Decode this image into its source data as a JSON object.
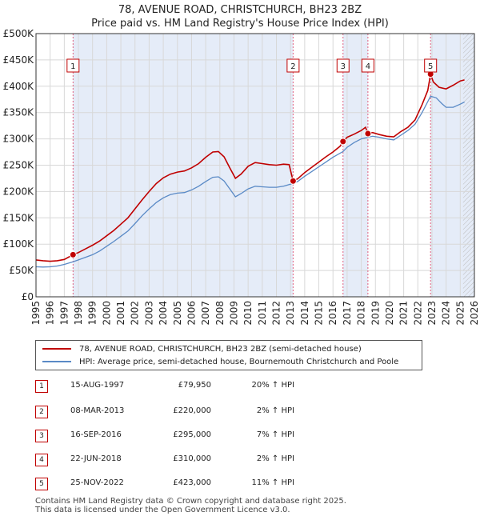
{
  "title_line1": "78, AVENUE ROAD, CHRISTCHURCH, BH23 2BZ",
  "title_line2": "Price paid vs. HM Land Registry's House Price Index (HPI)",
  "colors": {
    "price": "#c00000",
    "hpi": "#5a8ac6",
    "shade": "#dce6f5",
    "grid": "#d8d8d8"
  },
  "chart_data": {
    "type": "line",
    "title": "78, AVENUE ROAD, CHRISTCHURCH, BH23 2BZ — Price paid vs. HM Land Registry's House Price Index (HPI)",
    "xlim": [
      1995,
      2026
    ],
    "ylim": [
      0,
      500000
    ],
    "y_ticks": [
      0,
      50000,
      100000,
      150000,
      200000,
      250000,
      300000,
      350000,
      400000,
      450000,
      500000
    ],
    "y_tick_labels": [
      "£0",
      "£50K",
      "£100K",
      "£150K",
      "£200K",
      "£250K",
      "£300K",
      "£350K",
      "£400K",
      "£450K",
      "£500K"
    ],
    "x_ticks": [
      1995,
      1996,
      1997,
      1998,
      1999,
      2000,
      2001,
      2002,
      2003,
      2004,
      2005,
      2006,
      2007,
      2008,
      2009,
      2010,
      2011,
      2012,
      2013,
      2014,
      2015,
      2016,
      2017,
      2018,
      2019,
      2020,
      2021,
      2022,
      2023,
      2024,
      2025,
      2026
    ],
    "x_tick_labels": [
      "1995",
      "1996",
      "1997",
      "1998",
      "1999",
      "2000",
      "2001",
      "2002",
      "2003",
      "2004",
      "2005",
      "2006",
      "2007",
      "2008",
      "2009",
      "2010",
      "2011",
      "2012",
      "2013",
      "2014",
      "2015",
      "2016",
      "2017",
      "2018",
      "2019",
      "2020",
      "2021",
      "2022",
      "2023",
      "2024",
      "2025",
      "2026"
    ],
    "projection_from": 2025.2,
    "series": [
      {
        "name": "78, AVENUE ROAD, CHRISTCHURCH, BH23 2BZ (semi-detached house)",
        "color": "#c00000",
        "points": [
          [
            1995.0,
            70000
          ],
          [
            1995.5,
            68500
          ],
          [
            1996.0,
            67500
          ],
          [
            1996.5,
            68500
          ],
          [
            1997.0,
            71000
          ],
          [
            1997.62,
            79950
          ],
          [
            1998.0,
            84000
          ],
          [
            1998.5,
            91000
          ],
          [
            1999.0,
            98000
          ],
          [
            1999.5,
            106000
          ],
          [
            2000.0,
            116000
          ],
          [
            2000.5,
            126000
          ],
          [
            2001.0,
            138000
          ],
          [
            2001.5,
            150000
          ],
          [
            2002.0,
            167000
          ],
          [
            2002.5,
            184000
          ],
          [
            2003.0,
            200000
          ],
          [
            2003.5,
            215000
          ],
          [
            2004.0,
            226000
          ],
          [
            2004.5,
            233000
          ],
          [
            2005.0,
            237000
          ],
          [
            2005.5,
            239000
          ],
          [
            2006.0,
            245000
          ],
          [
            2006.5,
            253000
          ],
          [
            2007.0,
            265000
          ],
          [
            2007.5,
            275000
          ],
          [
            2007.9,
            276000
          ],
          [
            2008.3,
            266000
          ],
          [
            2008.7,
            245000
          ],
          [
            2009.1,
            225000
          ],
          [
            2009.5,
            233000
          ],
          [
            2010.0,
            248000
          ],
          [
            2010.5,
            255000
          ],
          [
            2011.0,
            253000
          ],
          [
            2011.5,
            251000
          ],
          [
            2012.0,
            250000
          ],
          [
            2012.5,
            252000
          ],
          [
            2012.9,
            251000
          ],
          [
            2013.18,
            220000
          ],
          [
            2013.5,
            224000
          ],
          [
            2014.0,
            236000
          ],
          [
            2014.5,
            246000
          ],
          [
            2015.0,
            256000
          ],
          [
            2015.5,
            266000
          ],
          [
            2016.0,
            275000
          ],
          [
            2016.5,
            286000
          ],
          [
            2016.71,
            295000
          ],
          [
            2017.0,
            303000
          ],
          [
            2017.5,
            309000
          ],
          [
            2018.0,
            316000
          ],
          [
            2018.3,
            322000
          ],
          [
            2018.47,
            310000
          ],
          [
            2018.8,
            312000
          ],
          [
            2019.3,
            308000
          ],
          [
            2019.8,
            305000
          ],
          [
            2020.3,
            304000
          ],
          [
            2020.8,
            314000
          ],
          [
            2021.3,
            322000
          ],
          [
            2021.8,
            336000
          ],
          [
            2022.3,
            365000
          ],
          [
            2022.7,
            392000
          ],
          [
            2022.9,
            423000
          ],
          [
            2023.1,
            408000
          ],
          [
            2023.5,
            398000
          ],
          [
            2024.0,
            395000
          ],
          [
            2024.5,
            402000
          ],
          [
            2025.0,
            410000
          ],
          [
            2025.3,
            412000
          ]
        ]
      },
      {
        "name": "HPI: Average price, semi-detached house, Bournemouth Christchurch and Poole",
        "color": "#5a8ac6",
        "points": [
          [
            1995.0,
            57000
          ],
          [
            1995.5,
            56500
          ],
          [
            1996.0,
            57000
          ],
          [
            1996.5,
            58500
          ],
          [
            1997.0,
            61500
          ],
          [
            1997.62,
            66500
          ],
          [
            1998.0,
            70000
          ],
          [
            1998.5,
            75000
          ],
          [
            1999.0,
            80000
          ],
          [
            1999.5,
            87000
          ],
          [
            2000.0,
            96000
          ],
          [
            2000.5,
            105000
          ],
          [
            2001.0,
            115000
          ],
          [
            2001.5,
            125000
          ],
          [
            2002.0,
            139000
          ],
          [
            2002.5,
            154000
          ],
          [
            2003.0,
            167000
          ],
          [
            2003.5,
            179000
          ],
          [
            2004.0,
            188000
          ],
          [
            2004.5,
            194000
          ],
          [
            2005.0,
            197000
          ],
          [
            2005.5,
            198000
          ],
          [
            2006.0,
            203000
          ],
          [
            2006.5,
            210000
          ],
          [
            2007.0,
            219000
          ],
          [
            2007.5,
            227000
          ],
          [
            2007.9,
            228000
          ],
          [
            2008.3,
            220000
          ],
          [
            2008.7,
            205000
          ],
          [
            2009.1,
            190000
          ],
          [
            2009.5,
            196000
          ],
          [
            2010.0,
            205000
          ],
          [
            2010.5,
            210000
          ],
          [
            2011.0,
            209000
          ],
          [
            2011.5,
            208000
          ],
          [
            2012.0,
            208000
          ],
          [
            2012.5,
            210000
          ],
          [
            2013.18,
            215500
          ],
          [
            2013.5,
            219000
          ],
          [
            2014.0,
            229000
          ],
          [
            2014.5,
            238000
          ],
          [
            2015.0,
            247000
          ],
          [
            2015.5,
            256000
          ],
          [
            2016.0,
            265000
          ],
          [
            2016.71,
            276000
          ],
          [
            2017.0,
            284000
          ],
          [
            2017.5,
            293000
          ],
          [
            2018.0,
            300000
          ],
          [
            2018.47,
            303000
          ],
          [
            2018.8,
            305000
          ],
          [
            2019.3,
            303000
          ],
          [
            2019.8,
            300000
          ],
          [
            2020.3,
            298000
          ],
          [
            2020.8,
            307000
          ],
          [
            2021.3,
            316000
          ],
          [
            2021.8,
            328000
          ],
          [
            2022.3,
            350000
          ],
          [
            2022.9,
            381000
          ],
          [
            2023.3,
            378000
          ],
          [
            2023.7,
            367000
          ],
          [
            2024.0,
            360000
          ],
          [
            2024.5,
            360000
          ],
          [
            2025.0,
            366000
          ],
          [
            2025.3,
            370000
          ]
        ]
      }
    ],
    "sales": [
      {
        "label": "1",
        "x": 1997.62,
        "y": 79950
      },
      {
        "label": "2",
        "x": 2013.18,
        "y": 220000
      },
      {
        "label": "3",
        "x": 2016.71,
        "y": 295000
      },
      {
        "label": "4",
        "x": 2018.47,
        "y": 310000
      },
      {
        "label": "5",
        "x": 2022.9,
        "y": 423000
      }
    ]
  },
  "legend": {
    "price_label": "78, AVENUE ROAD, CHRISTCHURCH, BH23 2BZ (semi-detached house)",
    "hpi_label": "HPI: Average price, semi-detached house, Bournemouth Christchurch and Poole"
  },
  "transactions": [
    {
      "num": "1",
      "date": "15-AUG-1997",
      "price": "£79,950",
      "hpi": "20% ↑ HPI"
    },
    {
      "num": "2",
      "date": "08-MAR-2013",
      "price": "£220,000",
      "hpi": "2% ↑ HPI"
    },
    {
      "num": "3",
      "date": "16-SEP-2016",
      "price": "£295,000",
      "hpi": "7% ↑ HPI"
    },
    {
      "num": "4",
      "date": "22-JUN-2018",
      "price": "£310,000",
      "hpi": "2% ↑ HPI"
    },
    {
      "num": "5",
      "date": "25-NOV-2022",
      "price": "£423,000",
      "hpi": "11% ↑ HPI"
    }
  ],
  "footer_line1": "Contains HM Land Registry data © Crown copyright and database right 2025.",
  "footer_line2": "This data is licensed under the Open Government Licence v3.0."
}
